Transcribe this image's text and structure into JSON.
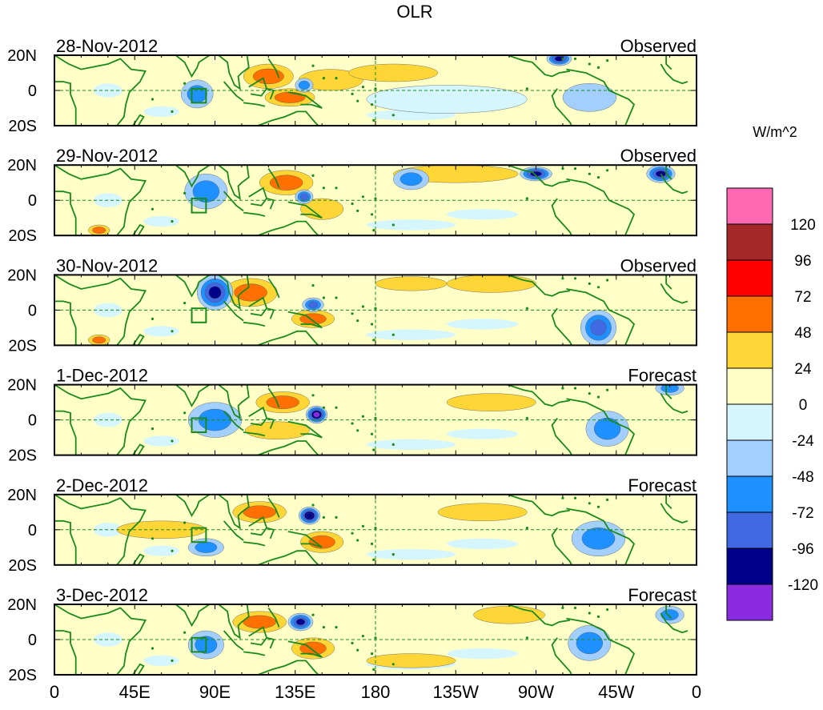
{
  "chart_data": {
    "type": "heatmap",
    "title": "OLR",
    "units_label": "W/m^2",
    "x_tick_labels": [
      "0",
      "45E",
      "90E",
      "135E",
      "180",
      "135W",
      "90W",
      "45W",
      "0"
    ],
    "x_ticks_deg_east": [
      0,
      45,
      90,
      135,
      180,
      225,
      270,
      315,
      360
    ],
    "y_tick_labels": [
      "20N",
      "0",
      "20S"
    ],
    "y_ticks_lat": [
      20,
      0,
      -20
    ],
    "lat_range": [
      -20,
      20
    ],
    "lon_range": [
      0,
      360
    ],
    "reference_lines": {
      "equator_lat": 0,
      "dateline_lon": 180
    },
    "box_region": {
      "lon": [
        77,
        85
      ],
      "lat": [
        -7,
        1
      ]
    },
    "colorbar": {
      "levels": [
        -120,
        -96,
        -72,
        -48,
        -24,
        0,
        24,
        48,
        72,
        96,
        120
      ],
      "level_labels": [
        "-120",
        "-96",
        "-72",
        "-48",
        "-24",
        "0",
        "24",
        "48",
        "72",
        "96",
        "120"
      ],
      "colors": [
        "#8a2be2",
        "#00008b",
        "#4169e1",
        "#1e90ff",
        "#a3cfff",
        "#d5f5ff",
        "#ffffc8",
        "#ffd635",
        "#ff7000",
        "#ff0000",
        "#a52828",
        "#ff69b4"
      ]
    },
    "panels": [
      {
        "date": "28-Nov-2012",
        "status": "Observed",
        "anomalies": [
          {
            "lon": 120,
            "lat": 8,
            "rx": 14,
            "ry": 7,
            "value": 50
          },
          {
            "lon": 132,
            "lat": -4,
            "rx": 14,
            "ry": 5,
            "value": 55
          },
          {
            "lon": 155,
            "lat": 6,
            "rx": 18,
            "ry": 6,
            "value": 30
          },
          {
            "lon": 80,
            "lat": -2,
            "rx": 9,
            "ry": 8,
            "value": -55
          },
          {
            "lon": 140,
            "lat": 3,
            "rx": 5,
            "ry": 4,
            "value": -70
          },
          {
            "lon": 220,
            "lat": -5,
            "rx": 45,
            "ry": 8,
            "value": -20
          },
          {
            "lon": 283,
            "lat": 18,
            "rx": 7,
            "ry": 4,
            "value": -100
          },
          {
            "lon": 300,
            "lat": -4,
            "rx": 15,
            "ry": 8,
            "value": -35
          },
          {
            "lon": 190,
            "lat": 10,
            "rx": 25,
            "ry": 5,
            "value": 28
          }
        ]
      },
      {
        "date": "29-Nov-2012",
        "status": "Observed",
        "anomalies": [
          {
            "lon": 130,
            "lat": 10,
            "rx": 15,
            "ry": 7,
            "value": 50
          },
          {
            "lon": 150,
            "lat": -5,
            "rx": 12,
            "ry": 6,
            "value": 45
          },
          {
            "lon": 225,
            "lat": 15,
            "rx": 35,
            "ry": 5,
            "value": 35
          },
          {
            "lon": 85,
            "lat": 5,
            "rx": 12,
            "ry": 10,
            "value": -60
          },
          {
            "lon": 270,
            "lat": 15,
            "rx": 9,
            "ry": 4,
            "value": -105
          },
          {
            "lon": 340,
            "lat": 15,
            "rx": 8,
            "ry": 5,
            "value": -100
          },
          {
            "lon": 25,
            "lat": -17,
            "rx": 6,
            "ry": 3,
            "value": 60
          },
          {
            "lon": 200,
            "lat": 12,
            "rx": 10,
            "ry": 6,
            "value": -50
          },
          {
            "lon": 140,
            "lat": 2,
            "rx": 5,
            "ry": 4,
            "value": -80
          }
        ]
      },
      {
        "date": "30-Nov-2012",
        "status": "Observed",
        "anomalies": [
          {
            "lon": 110,
            "lat": 10,
            "rx": 15,
            "ry": 8,
            "value": 55
          },
          {
            "lon": 145,
            "lat": -5,
            "rx": 12,
            "ry": 5,
            "value": 50
          },
          {
            "lon": 245,
            "lat": 15,
            "rx": 25,
            "ry": 5,
            "value": 40
          },
          {
            "lon": 90,
            "lat": 10,
            "rx": 10,
            "ry": 10,
            "value": -100
          },
          {
            "lon": 145,
            "lat": 3,
            "rx": 6,
            "ry": 4,
            "value": -80
          },
          {
            "lon": 305,
            "lat": -10,
            "rx": 10,
            "ry": 10,
            "value": -80
          },
          {
            "lon": 25,
            "lat": -17,
            "rx": 6,
            "ry": 3,
            "value": 55
          },
          {
            "lon": 200,
            "lat": 15,
            "rx": 20,
            "ry": 4,
            "value": 30
          }
        ]
      },
      {
        "date": "1-Dec-2012",
        "status": "Forecast",
        "anomalies": [
          {
            "lon": 128,
            "lat": 10,
            "rx": 15,
            "ry": 6,
            "value": 55
          },
          {
            "lon": 125,
            "lat": -6,
            "rx": 18,
            "ry": 5,
            "value": 45
          },
          {
            "lon": 147,
            "lat": 3,
            "rx": 6,
            "ry": 5,
            "value": -130
          },
          {
            "lon": 90,
            "lat": 0,
            "rx": 15,
            "ry": 10,
            "value": -50
          },
          {
            "lon": 245,
            "lat": 10,
            "rx": 25,
            "ry": 5,
            "value": 40
          },
          {
            "lon": 310,
            "lat": -5,
            "rx": 12,
            "ry": 10,
            "value": -60
          },
          {
            "lon": 345,
            "lat": 18,
            "rx": 8,
            "ry": 4,
            "value": -50
          }
        ]
      },
      {
        "date": "2-Dec-2012",
        "status": "Forecast",
        "anomalies": [
          {
            "lon": 115,
            "lat": 10,
            "rx": 15,
            "ry": 6,
            "value": 55
          },
          {
            "lon": 143,
            "lat": 8,
            "rx": 6,
            "ry": 5,
            "value": -120
          },
          {
            "lon": 150,
            "lat": -7,
            "rx": 12,
            "ry": 6,
            "value": 50
          },
          {
            "lon": 60,
            "lat": 0,
            "rx": 25,
            "ry": 5,
            "value": 30
          },
          {
            "lon": 240,
            "lat": 10,
            "rx": 25,
            "ry": 5,
            "value": 40
          },
          {
            "lon": 305,
            "lat": -5,
            "rx": 15,
            "ry": 10,
            "value": -60
          },
          {
            "lon": 85,
            "lat": -10,
            "rx": 10,
            "ry": 5,
            "value": -50
          }
        ]
      },
      {
        "date": "3-Dec-2012",
        "status": "Forecast",
        "anomalies": [
          {
            "lon": 115,
            "lat": 10,
            "rx": 15,
            "ry": 6,
            "value": 55
          },
          {
            "lon": 138,
            "lat": 10,
            "rx": 7,
            "ry": 5,
            "value": -110
          },
          {
            "lon": 145,
            "lat": -5,
            "rx": 12,
            "ry": 6,
            "value": 50
          },
          {
            "lon": 300,
            "lat": -2,
            "rx": 12,
            "ry": 10,
            "value": -60
          },
          {
            "lon": 255,
            "lat": 14,
            "rx": 20,
            "ry": 5,
            "value": 35
          },
          {
            "lon": 345,
            "lat": 14,
            "rx": 8,
            "ry": 5,
            "value": -70
          },
          {
            "lon": 85,
            "lat": -3,
            "rx": 10,
            "ry": 8,
            "value": -50
          },
          {
            "lon": 200,
            "lat": -12,
            "rx": 25,
            "ry": 4,
            "value": 28
          }
        ]
      }
    ]
  }
}
